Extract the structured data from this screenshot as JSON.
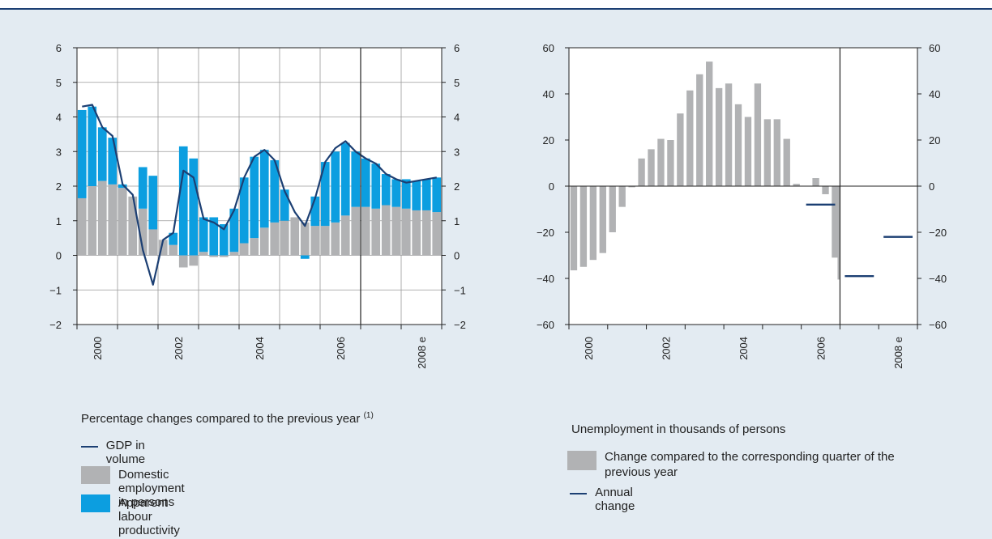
{
  "colors": {
    "gdp_line": "#1c3f73",
    "employment_bar": "#b1b2b4",
    "productivity_bar": "#0c9ee0",
    "background": "#e3ebf2"
  },
  "left_legend": {
    "title": "Percentage changes compared to the previous year",
    "title_note": "(1)",
    "items": [
      {
        "label": "GDP in volume"
      },
      {
        "label": "Domestic employment in persons"
      },
      {
        "label": "Apparent labour productivity"
      }
    ]
  },
  "right_legend": {
    "title": "Unemployment in thousands of persons",
    "items": [
      {
        "label": "Change compared to the corresponding quarter of the previous year"
      },
      {
        "label": "Annual change"
      }
    ]
  },
  "chart_data": [
    {
      "type": "bar",
      "ylim": [
        -2,
        6
      ],
      "yticks": [
        -2,
        -1,
        0,
        1,
        2,
        3,
        4,
        5,
        6
      ],
      "ytick_labels": [
        "−2",
        "−1",
        "0",
        "1",
        "2",
        "3",
        "4",
        "5",
        "6"
      ],
      "x_tick_labels": [
        "2000",
        "2002",
        "2004",
        "2006",
        "2008 e"
      ],
      "grid": true,
      "forecast_divider_after_quarter": 28,
      "categories": [
        "2000Q1",
        "2000Q2",
        "2000Q3",
        "2000Q4",
        "2001Q1",
        "2001Q2",
        "2001Q3",
        "2001Q4",
        "2002Q1",
        "2002Q2",
        "2002Q3",
        "2002Q4",
        "2003Q1",
        "2003Q2",
        "2003Q3",
        "2003Q4",
        "2004Q1",
        "2004Q2",
        "2004Q3",
        "2004Q4",
        "2005Q1",
        "2005Q2",
        "2005Q3",
        "2005Q4",
        "2006Q1",
        "2006Q2",
        "2006Q3",
        "2006Q4",
        "2007Q1",
        "2007Q2",
        "2007Q3",
        "2007Q4",
        "2008Q1",
        "2008Q2",
        "2008Q3",
        "2008Q4"
      ],
      "series": [
        {
          "name": "Domestic employment in persons",
          "values": [
            1.65,
            2.0,
            2.15,
            2.05,
            1.95,
            1.7,
            1.35,
            0.75,
            0.45,
            0.3,
            -0.35,
            -0.3,
            0.1,
            -0.05,
            -0.05,
            0.1,
            0.35,
            0.5,
            0.8,
            0.95,
            1.0,
            1.1,
            0.95,
            0.85,
            0.85,
            0.95,
            1.15,
            1.4,
            1.4,
            1.35,
            1.45,
            1.4,
            1.35,
            1.3,
            1.3,
            1.25
          ]
        },
        {
          "name": "Apparent labour productivity",
          "values": [
            2.55,
            2.3,
            1.55,
            1.35,
            0.1,
            0.0,
            1.2,
            1.55,
            0.0,
            0.35,
            3.15,
            2.8,
            1.0,
            1.1,
            0.9,
            1.25,
            1.9,
            2.35,
            2.25,
            1.8,
            0.9,
            0.0,
            -0.1,
            0.85,
            1.85,
            2.05,
            2.1,
            1.6,
            1.4,
            1.3,
            0.9,
            0.8,
            0.85,
            0.85,
            0.9,
            1.0
          ]
        },
        {
          "name": "GDP in volume",
          "values": [
            4.3,
            4.35,
            3.7,
            3.45,
            2.05,
            1.75,
            0.15,
            -0.85,
            0.45,
            0.65,
            2.45,
            2.25,
            1.05,
            0.95,
            0.75,
            1.3,
            2.25,
            2.85,
            3.05,
            2.75,
            1.85,
            1.25,
            0.85,
            1.65,
            2.7,
            3.1,
            3.3,
            3.0,
            2.8,
            2.65,
            2.35,
            2.2,
            2.1,
            2.15,
            2.2,
            2.25
          ]
        }
      ]
    },
    {
      "type": "bar",
      "ylim": [
        -60,
        60
      ],
      "yticks": [
        -60,
        -40,
        -20,
        0,
        20,
        40,
        60
      ],
      "ytick_labels": [
        "−60",
        "−40",
        "−20",
        "0",
        "20",
        "40",
        "60"
      ],
      "x_tick_labels": [
        "2000",
        "2002",
        "2004",
        "2006",
        "2008 e"
      ],
      "grid": false,
      "forecast_divider_after_quarter": 28,
      "categories": [
        "2000Q1",
        "2000Q2",
        "2000Q3",
        "2000Q4",
        "2001Q1",
        "2001Q2",
        "2001Q3",
        "2001Q4",
        "2002Q1",
        "2002Q2",
        "2002Q3",
        "2002Q4",
        "2003Q1",
        "2003Q2",
        "2003Q3",
        "2003Q4",
        "2004Q1",
        "2004Q2",
        "2004Q3",
        "2004Q4",
        "2005Q1",
        "2005Q2",
        "2005Q3",
        "2005Q4",
        "2006Q1",
        "2006Q2",
        "2006Q3",
        "2006Q4"
      ],
      "series": [
        {
          "name": "Change compared to the corresponding quarter of the previous year",
          "values": [
            -36.5,
            -35,
            -32,
            -29,
            -20,
            -9,
            -0.5,
            12,
            16,
            20.5,
            20,
            31.5,
            41.5,
            48.5,
            54,
            42.5,
            44.5,
            35.5,
            30,
            44.5,
            29,
            29,
            20.5,
            1,
            0,
            3.5,
            -3.5,
            -31
          ]
        },
        {
          "name": "Annual change",
          "segments": [
            {
              "year": "2006",
              "value": -8
            },
            {
              "year": "2007",
              "value": -39
            },
            {
              "year": "2008",
              "value": -22
            }
          ]
        }
      ],
      "extra_bar": {
        "quarter_index": 27,
        "value": -40.5
      }
    }
  ]
}
